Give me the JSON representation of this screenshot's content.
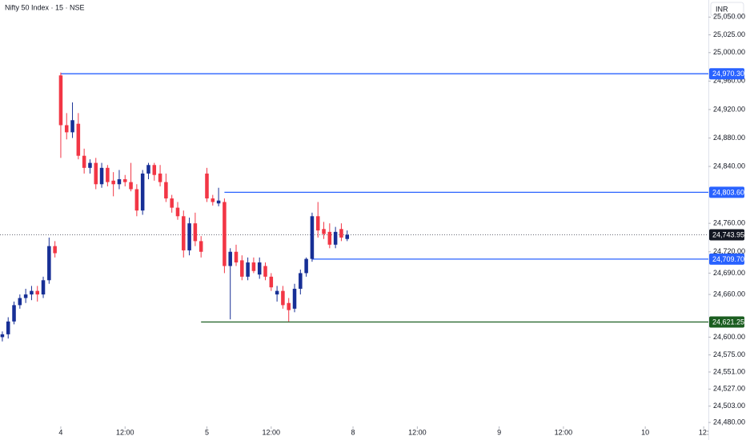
{
  "chart_data": {
    "type": "candlestick",
    "title": "Nifty 50 Index · 15 · NSE",
    "currency": "INR",
    "xlim": [
      -0.4,
      120.8
    ],
    "ylim": [
      24461,
      25074
    ],
    "xticks": [
      {
        "value": 10,
        "label": "4"
      },
      {
        "value": 21,
        "label": "12:00"
      },
      {
        "value": 35,
        "label": "5"
      },
      {
        "value": 46,
        "label": "12:00"
      },
      {
        "value": 60,
        "label": "8"
      },
      {
        "value": 71,
        "label": "12:00"
      },
      {
        "value": 85,
        "label": "9"
      },
      {
        "value": 96,
        "label": "12:00"
      },
      {
        "value": 110,
        "label": "10"
      },
      {
        "value": 120,
        "label": "12:"
      }
    ],
    "yticks": [
      {
        "value": 25050,
        "label": "25,050.00"
      },
      {
        "value": 25025,
        "label": "25,025.00"
      },
      {
        "value": 25000,
        "label": "25,000.00"
      },
      {
        "value": 24960,
        "label": "24,960.00"
      },
      {
        "value": 24920,
        "label": "24,920.00"
      },
      {
        "value": 24880,
        "label": "24,880.00"
      },
      {
        "value": 24840,
        "label": "24,840.00"
      },
      {
        "value": 24760,
        "label": "24,760.00"
      },
      {
        "value": 24720,
        "label": "24,720.00"
      },
      {
        "value": 24690,
        "label": "24,690.00"
      },
      {
        "value": 24660,
        "label": "24,660.00"
      },
      {
        "value": 24600,
        "label": "24,600.00"
      },
      {
        "value": 24575,
        "label": "24,575.00"
      },
      {
        "value": 24551,
        "label": "24,551.00"
      },
      {
        "value": 24527,
        "label": "24,527.00"
      },
      {
        "value": 24503,
        "label": "24,503.00"
      },
      {
        "value": 24480,
        "label": "24,480.00"
      }
    ],
    "up_color": "#172f96",
    "down_color": "#f23645",
    "candles": {
      "x": [
        0,
        1,
        2,
        3,
        4,
        5,
        6,
        7,
        8,
        9,
        10,
        11,
        12,
        13,
        14,
        15,
        16,
        17,
        18,
        19,
        20,
        21,
        22,
        23,
        24,
        25,
        26,
        27,
        28,
        29,
        30,
        31,
        32,
        33,
        34,
        35,
        36,
        37,
        38,
        39,
        40,
        41,
        42,
        43,
        44,
        45,
        46,
        47,
        48,
        49,
        50,
        51,
        52,
        53,
        54,
        55,
        56,
        57,
        58,
        59
      ],
      "open": [
        24600,
        24604,
        24622,
        24645,
        24655,
        24660,
        24665,
        24660,
        24680,
        24728,
        24968,
        24898,
        24888,
        24900,
        24855,
        24838,
        24845,
        24815,
        24838,
        24820,
        24815,
        24822,
        24818,
        24808,
        24778,
        24830,
        24842,
        24830,
        24818,
        24795,
        24782,
        24770,
        24722,
        24760,
        24735,
        24830,
        24795,
        24788,
        24790,
        24700,
        24720,
        24708,
        24685,
        24705,
        24688,
        24700,
        24685,
        24660,
        24665,
        24648,
        24640,
        24668,
        24690,
        24710,
        24770,
        24752,
        24748,
        24730,
        24752,
        24738
      ],
      "high": [
        24608,
        24628,
        24650,
        24660,
        24668,
        24672,
        24672,
        24685,
        24740,
        24735,
        24972,
        24915,
        24930,
        24915,
        24865,
        24850,
        24852,
        24845,
        24842,
        24832,
        24835,
        24828,
        24845,
        24815,
        24835,
        24845,
        24845,
        24842,
        24830,
        24800,
        24790,
        24778,
        24768,
        24775,
        24742,
        24838,
        24800,
        24810,
        24795,
        24725,
        24730,
        24715,
        24712,
        24712,
        24712,
        24705,
        24690,
        24672,
        24672,
        24655,
        24675,
        24695,
        24712,
        24775,
        24790,
        24762,
        24760,
        24755,
        24760,
        24750
      ],
      "low": [
        24594,
        24598,
        24618,
        24640,
        24648,
        24652,
        24650,
        24655,
        24675,
        24712,
        24852,
        24878,
        24880,
        24850,
        24830,
        24830,
        24808,
        24810,
        24812,
        24798,
        24808,
        24812,
        24805,
        24770,
        24772,
        24822,
        24820,
        24812,
        24790,
        24775,
        24765,
        24712,
        24715,
        24728,
        24712,
        24790,
        24785,
        24784,
        24690,
        24625,
        24700,
        24680,
        24680,
        24690,
        24682,
        24680,
        24665,
        24650,
        24640,
        24622,
        24635,
        24660,
        24685,
        24706,
        24740,
        24738,
        24725,
        24725,
        24735,
        24735
      ],
      "close": [
        24604,
        24622,
        24645,
        24655,
        24660,
        24665,
        24660,
        24680,
        24728,
        24718,
        24898,
        24888,
        24905,
        24855,
        24838,
        24845,
        24815,
        24838,
        24818,
        24815,
        24822,
        24818,
        24808,
        24778,
        24830,
        24842,
        24828,
        24818,
        24795,
        24782,
        24770,
        24722,
        24760,
        24735,
        24720,
        24795,
        24790,
        24792,
        24700,
        24720,
        24705,
        24685,
        24705,
        24693,
        24705,
        24685,
        24670,
        24665,
        24645,
        24638,
        24668,
        24690,
        24710,
        24770,
        24750,
        24745,
        24730,
        24748,
        24740,
        24743.95
      ]
    },
    "levels": [
      {
        "value": 24970.3,
        "label": "24,970.30",
        "color": "#2962ff",
        "from": 10
      },
      {
        "value": 24803.6,
        "label": "24,803.60",
        "color": "#2962ff",
        "from": 38
      },
      {
        "value": 24709.7,
        "label": "24,709.70",
        "color": "#2962ff",
        "from": 53
      },
      {
        "value": 24621.25,
        "label": "24,621.25",
        "color": "#1b5e20",
        "from": 34
      }
    ],
    "last_price": {
      "value": 24743.95,
      "label": "24,743.95",
      "color": "#131722"
    }
  }
}
